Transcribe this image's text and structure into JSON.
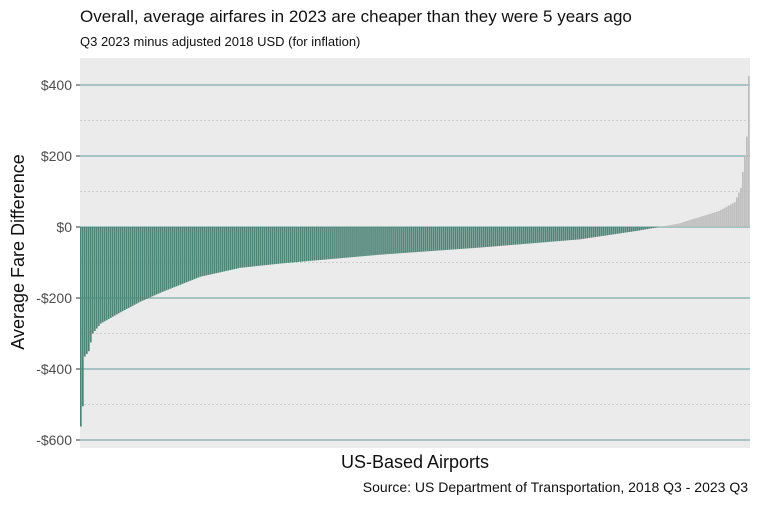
{
  "chart_data": {
    "type": "bar",
    "title": "Overall, average airfares in 2023 are cheaper than they were 5 years ago",
    "subtitle": "Q3 2023 minus adjusted 2018 USD (for inflation)",
    "xlabel": "US-Based Airports",
    "ylabel": "Average Fare Difference",
    "caption": "Source: US Department of Transportation, 2018 Q3 - 2023 Q3",
    "ylim": [
      -620,
      430
    ],
    "yticks": [
      400,
      200,
      0,
      -200,
      -400,
      -600
    ],
    "ytick_labels": [
      "$400",
      "$200",
      "$0",
      "-$200",
      "-$400",
      "-$600"
    ],
    "major_gridlines": [
      400,
      200,
      0,
      -200,
      -400,
      -600
    ],
    "minor_gridlines": [
      300,
      100,
      -100,
      -300,
      -500
    ],
    "grid": true,
    "x_ticks_shown": false,
    "n_airports": 336,
    "sorted_ascending": true,
    "sample_points": [
      {
        "rank": 0,
        "value": -562
      },
      {
        "rank": 1,
        "value": -505
      },
      {
        "rank": 2,
        "value": -365
      },
      {
        "rank": 4,
        "value": -350
      },
      {
        "rank": 6,
        "value": -300
      },
      {
        "rank": 10,
        "value": -272
      },
      {
        "rank": 20,
        "value": -240
      },
      {
        "rank": 30,
        "value": -210
      },
      {
        "rank": 40,
        "value": -185
      },
      {
        "rank": 60,
        "value": -140
      },
      {
        "rank": 80,
        "value": -115
      },
      {
        "rank": 100,
        "value": -103
      },
      {
        "rank": 150,
        "value": -78
      },
      {
        "rank": 200,
        "value": -58
      },
      {
        "rank": 250,
        "value": -35
      },
      {
        "rank": 280,
        "value": -10
      },
      {
        "rank": 290,
        "value": 0
      },
      {
        "rank": 300,
        "value": 10
      },
      {
        "rank": 320,
        "value": 45
      },
      {
        "rank": 328,
        "value": 70
      },
      {
        "rank": 331,
        "value": 110
      },
      {
        "rank": 333,
        "value": 200
      },
      {
        "rank": 334,
        "value": 255
      },
      {
        "rank": 335,
        "value": 425
      }
    ],
    "colors": {
      "negative": "#4e8577",
      "positive": "#bdbdbd",
      "panel_background": "#ebebeb",
      "major_grid": "#8fb7b3",
      "minor_grid": "#cccccc"
    }
  }
}
